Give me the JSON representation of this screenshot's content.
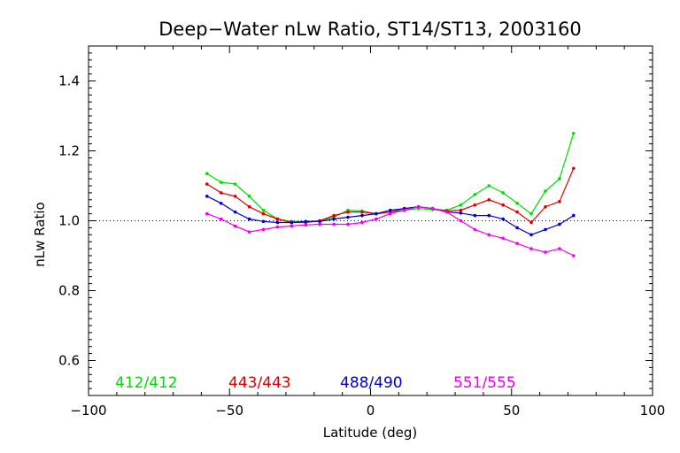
{
  "chart_data": {
    "type": "line",
    "title": "Deep−Water nLw Ratio, ST14/ST13, 2003160",
    "xlabel": "Latitude (deg)",
    "ylabel": "nLw Ratio",
    "xlim": [
      -100,
      100
    ],
    "ylim": [
      0.5,
      1.5
    ],
    "x_ticks": [
      -100,
      -50,
      0,
      50,
      100
    ],
    "x_tick_labels": [
      "−100",
      "−50",
      "0",
      "50",
      "100"
    ],
    "y_ticks": [
      0.6,
      0.8,
      1.0,
      1.2,
      1.4
    ],
    "y_tick_labels": [
      "0.6",
      "0.8",
      "1.0",
      "1.2",
      "1.4"
    ],
    "reference_line": 1.0,
    "legend_placement": "bottom",
    "x": [
      -58,
      -53,
      -48,
      -43,
      -38,
      -33,
      -28,
      -23,
      -18,
      -13,
      -8,
      -3,
      2,
      7,
      12,
      17,
      22,
      27,
      32,
      37,
      42,
      47,
      52,
      57,
      62,
      67,
      72
    ],
    "series": [
      {
        "name": "412/412",
        "color": "#00dd00",
        "values": [
          1.135,
          1.11,
          1.105,
          1.07,
          1.03,
          1.005,
          0.998,
          0.998,
          1.0,
          1.01,
          1.03,
          1.028,
          1.02,
          1.025,
          1.03,
          1.035,
          1.032,
          1.03,
          1.045,
          1.075,
          1.1,
          1.08,
          1.05,
          1.02,
          1.085,
          1.12,
          1.25
        ]
      },
      {
        "name": "443/443",
        "color": "#dd0000",
        "values": [
          1.105,
          1.08,
          1.07,
          1.04,
          1.02,
          1.005,
          0.995,
          0.995,
          1.0,
          1.015,
          1.025,
          1.025,
          1.02,
          1.025,
          1.035,
          1.04,
          1.035,
          1.028,
          1.03,
          1.045,
          1.06,
          1.045,
          1.025,
          0.995,
          1.04,
          1.055,
          1.15
        ]
      },
      {
        "name": "488/490",
        "color": "#0000cc",
        "values": [
          1.07,
          1.05,
          1.025,
          1.005,
          0.998,
          0.995,
          0.995,
          0.998,
          0.998,
          1.005,
          1.01,
          1.015,
          1.02,
          1.03,
          1.035,
          1.04,
          1.035,
          1.025,
          1.022,
          1.015,
          1.015,
          1.005,
          0.98,
          0.96,
          0.975,
          0.99,
          1.015
        ]
      },
      {
        "name": "551/555",
        "color": "#ee00ee",
        "values": [
          1.02,
          1.005,
          0.985,
          0.968,
          0.975,
          0.982,
          0.985,
          0.988,
          0.99,
          0.99,
          0.99,
          0.995,
          1.005,
          1.02,
          1.03,
          1.04,
          1.035,
          1.025,
          1.0,
          0.975,
          0.96,
          0.95,
          0.935,
          0.92,
          0.91,
          0.92,
          0.9
        ]
      }
    ]
  }
}
